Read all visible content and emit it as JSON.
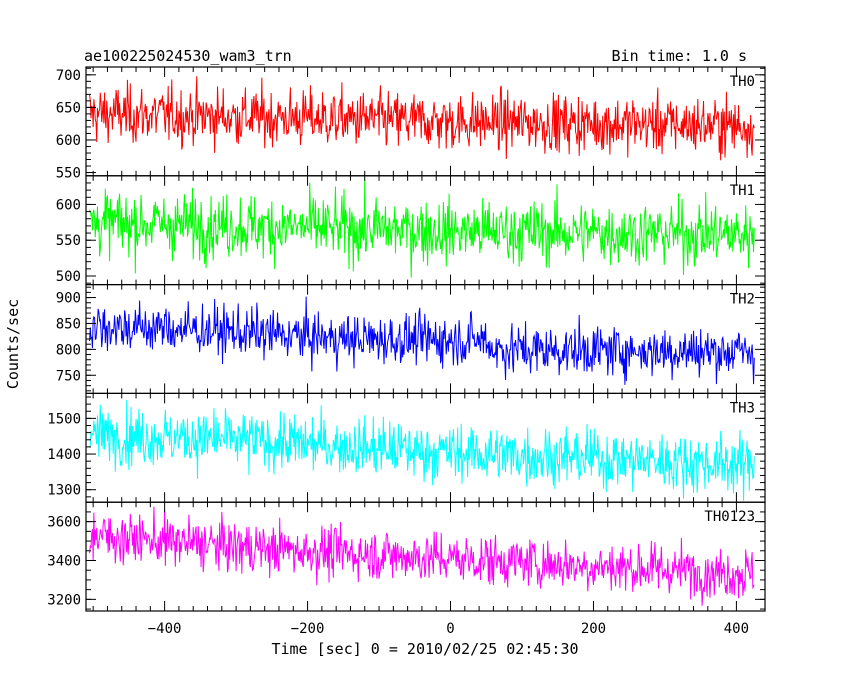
{
  "header": {
    "title": "ae100225024530_wam3_trn",
    "bin_time": "Bin time: 1.0 s"
  },
  "axes": {
    "ylabel": "Counts/sec",
    "xlabel": "Time [sec] 0 = 2010/02/25 02:45:30"
  },
  "chart_data": {
    "type": "line",
    "title": "ae100225024530_wam3_trn",
    "xlabel": "Time [sec] 0 = 2010/02/25 02:45:30",
    "ylabel": "Counts/sec",
    "xlim": [
      -510,
      440
    ],
    "x_range_data": [
      -505,
      425
    ],
    "x_ticks": [
      -400,
      -200,
      0,
      200,
      400
    ],
    "x_tick_labels": [
      "−400",
      "−200",
      "0",
      "200",
      "400"
    ],
    "bin_time_s": 1.0,
    "grid": false,
    "legend": "none",
    "panels": [
      {
        "name": "TH0",
        "color": "#ff0000",
        "ylim": [
          545,
          712
        ],
        "yticks": [
          550,
          600,
          650,
          700
        ],
        "trend": [
          [
            -505,
            640
          ],
          [
            -300,
            636
          ],
          [
            0,
            628
          ],
          [
            425,
            622
          ]
        ],
        "noise_sd": 22
      },
      {
        "name": "TH1",
        "color": "#00ff00",
        "ylim": [
          488,
          640
        ],
        "yticks": [
          500,
          550,
          600
        ],
        "trend": [
          [
            -505,
            575
          ],
          [
            -300,
            570
          ],
          [
            0,
            563
          ],
          [
            425,
            558
          ]
        ],
        "noise_sd": 22
      },
      {
        "name": "TH2",
        "color": "#0000ff",
        "ylim": [
          715,
          925
        ],
        "yticks": [
          750,
          800,
          850,
          900
        ],
        "trend": [
          [
            -505,
            845
          ],
          [
            -350,
            838
          ],
          [
            -150,
            820
          ],
          [
            50,
            818
          ],
          [
            60,
            800
          ],
          [
            425,
            795
          ]
        ],
        "noise_sd": 24
      },
      {
        "name": "TH3",
        "color": "#00ffff",
        "ylim": [
          1265,
          1570
        ],
        "yticks": [
          1300,
          1400,
          1500
        ],
        "trend": [
          [
            -505,
            1455
          ],
          [
            -300,
            1440
          ],
          [
            0,
            1405
          ],
          [
            425,
            1370
          ]
        ],
        "noise_sd": 40
      },
      {
        "name": "TH0123",
        "color": "#ff00ff",
        "ylim": [
          3140,
          3700
        ],
        "yticks": [
          3200,
          3400,
          3600
        ],
        "trend": [
          [
            -505,
            3530
          ],
          [
            -300,
            3470
          ],
          [
            0,
            3410
          ],
          [
            425,
            3330
          ]
        ],
        "noise_sd": 65
      }
    ]
  }
}
